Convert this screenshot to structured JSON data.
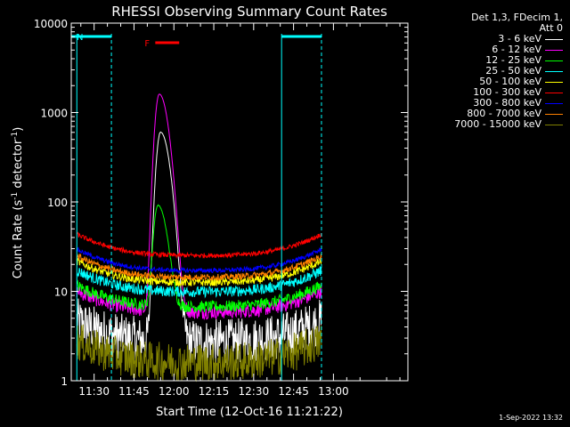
{
  "chart_data": {
    "type": "line",
    "title": "RHESSI Observing Summary Count Rates",
    "xlabel": "Start Time (12-Oct-16 11:21:22)",
    "ylabel_main": "Count Rate (s",
    "ylabel_sup1": "-1",
    "ylabel_mid": " detector",
    "ylabel_sup2": "-1",
    "ylabel_end": ")",
    "yscale": "log",
    "ylim": [
      1,
      10000
    ],
    "xlim_minutes": [
      21.4,
      180
    ],
    "yticks": [
      {
        "value": 1,
        "label": "1"
      },
      {
        "value": 10,
        "label": "10"
      },
      {
        "value": 100,
        "label": "100"
      },
      {
        "value": 1000,
        "label": "1000"
      },
      {
        "value": 10000,
        "label": "10000"
      }
    ],
    "xticks": [
      {
        "minute": 30,
        "label": "11:30"
      },
      {
        "minute": 45,
        "label": "11:45"
      },
      {
        "minute": 60,
        "label": "12:00"
      },
      {
        "minute": 75,
        "label": "12:15"
      },
      {
        "minute": 90,
        "label": "12:30"
      },
      {
        "minute": 105,
        "label": "12:45"
      },
      {
        "minute": 120,
        "label": "13:00"
      }
    ],
    "flags": [
      {
        "label": "N",
        "color": "#00ffff",
        "start_min": 21.4,
        "end_min": 36.5
      },
      {
        "label": "",
        "color": "#00ffff",
        "start_min": 100.5,
        "end_min": 115.5
      },
      {
        "label": "F",
        "color": "#ff0000",
        "start_min": 53,
        "end_min": 62
      }
    ],
    "night_boundaries_min": [
      36.5,
      100.5,
      115.5
    ],
    "day_start_min": 100.5,
    "series": [
      {
        "name": "3 - 6 keV",
        "color": "#ffffff",
        "baseline": 3,
        "peak": 600,
        "peak_min": 55,
        "noise": 0.6
      },
      {
        "name": "6 - 12 keV",
        "color": "#ff00ff",
        "baseline": 6.5,
        "peak": 1600,
        "peak_min": 54.5,
        "noise": 0.18
      },
      {
        "name": "12 - 25 keV",
        "color": "#00ff00",
        "baseline": 7.5,
        "peak": 85,
        "peak_min": 54,
        "noise": 0.15
      },
      {
        "name": "25 - 50 keV",
        "color": "#00ffff",
        "baseline": 11,
        "peak": 0,
        "peak_min": 0,
        "noise": 0.14
      },
      {
        "name": "50 - 100 keV",
        "color": "#ffff00",
        "baseline": 14,
        "peak": 0,
        "peak_min": 0,
        "noise": 0.1
      },
      {
        "name": "100 - 300 keV",
        "color": "#ff0000",
        "baseline": 28,
        "peak": 0,
        "peak_min": 0,
        "noise": 0.06
      },
      {
        "name": "300 - 800 keV",
        "color": "#0000ff",
        "baseline": 19,
        "peak": 0,
        "peak_min": 0,
        "noise": 0.06
      },
      {
        "name": "800 - 7000 keV",
        "color": "#ff8000",
        "baseline": 16,
        "peak": 0,
        "peak_min": 0,
        "noise": 0.08
      },
      {
        "name": "7000 - 15000 keV",
        "color": "#808000",
        "baseline": 1.8,
        "peak": 0,
        "peak_min": 0,
        "noise": 0.5
      }
    ]
  },
  "legend": {
    "header_line1": "Det 1,3, FDecim 1,",
    "header_line2": "Att 0"
  },
  "footer": {
    "timestamp": "1-Sep-2022 13:32"
  }
}
